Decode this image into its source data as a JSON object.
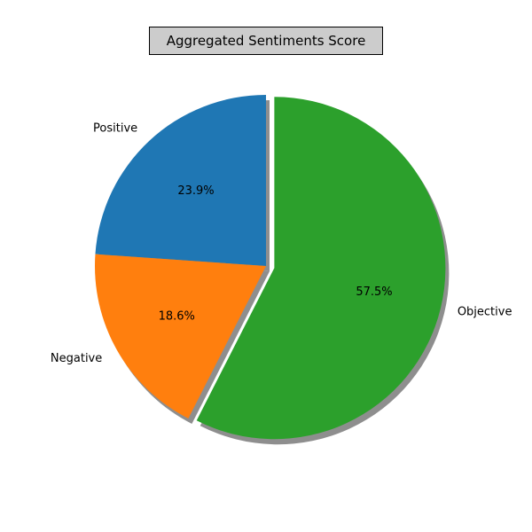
{
  "chart_data": {
    "type": "pie",
    "title": "Aggregated Sentiments Score",
    "slices": [
      {
        "label": "Positive",
        "value": 23.9,
        "pct_label": "23.9%",
        "color": "#1f77b4",
        "explode": 0
      },
      {
        "label": "Negative",
        "value": 18.6,
        "pct_label": "18.6%",
        "color": "#ff7f0e",
        "explode": 0
      },
      {
        "label": "Objective",
        "value": 57.5,
        "pct_label": "57.5%",
        "color": "#2ca02c",
        "explode": 0.05
      }
    ],
    "start_angle": 90,
    "direction": "counterclockwise",
    "shadow": true,
    "shadow_color": "#8e8e8e",
    "title_background": "#cccccc"
  }
}
